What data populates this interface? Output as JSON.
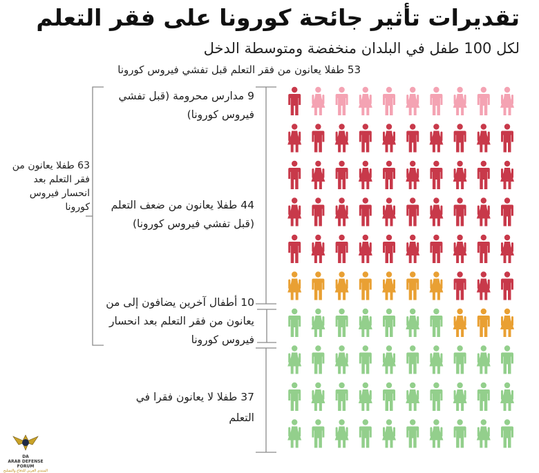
{
  "title": "تقديرات تأثير جائحة كورونا على فقر التعلم",
  "subtitle": "لكل 100 طفل في البلدان منخفضة ومتوسطة الدخل",
  "note_top": "53 طفلا يعانون من فقر التعلم قبل تفشي فيروس كورونا",
  "labels": {
    "schools_closed": "9 مدارس محرومة (قبل تفشي فيروس كورونا)",
    "weak_learning": "44 طفلا يعانون من ضعف التعلم (قبل تفشي فيروس كورونا)",
    "additional": "10 أطفال آخرين يضافون إلى من يعانون من فقر التعلم بعد انحسار فيروس كورونا",
    "not_poor": "37 طفلا لا يعانون فقرا في التعلم",
    "after_total": "63 طفلا يعانون من فقر التعلم بعد انحسار فيروس كورونا"
  },
  "chart_data": {
    "type": "pictogram",
    "total": 100,
    "columns": 10,
    "groups": [
      {
        "label": "9 مدارس محرومة (قبل تفشي فيروس كورونا)",
        "count": 9,
        "color": "#f4a3b3"
      },
      {
        "label": "44 طفلا يعانون من ضعف التعلم (قبل تفشي فيروس كورونا)",
        "count": 44,
        "color": "#c8394a"
      },
      {
        "label": "10 أطفال آخرين يضافون إلى من يعانون من فقر التعلم بعد انحسار فيروس كورونا",
        "count": 10,
        "color": "#e9a033"
      },
      {
        "label": "37 طفلا لا يعانون فقرا في التعلم",
        "count": 37,
        "color": "#93cf8c"
      }
    ]
  },
  "logo": {
    "mark": "DA",
    "name": "ARAB DEFENSE FORUM",
    "tagline": "المنتدى العربي للدفاع والتسليح"
  }
}
